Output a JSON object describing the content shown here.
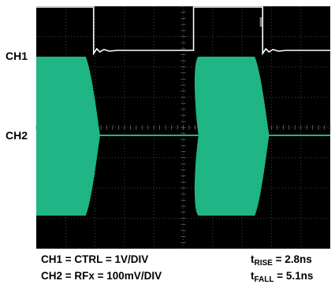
{
  "chart_data": {
    "type": "oscilloscope",
    "channels": [
      {
        "label": "CH1",
        "color": "#ffffff",
        "role": "CTRL",
        "high_segments": [
          [
            0,
            1.95
          ],
          [
            5.35,
            7.7
          ]
        ]
      },
      {
        "label": "CH2",
        "color": "#1fb584",
        "role": "RFx",
        "envelope_segments": [
          [
            0,
            1.95
          ],
          [
            5.35,
            7.7
          ]
        ]
      }
    ],
    "divisions": {
      "x": 10,
      "y": 8
    },
    "grid": true,
    "background": "#000000"
  },
  "captions": {
    "ch1": "CH1 = CTRL = 1V/DIV",
    "ch2": "CH2 = RFx = 100mV/DIV",
    "rise_t": "t",
    "rise_sub": "RISE",
    "rise_val": " = 2.8ns",
    "fall_t": "t",
    "fall_sub": "FALL",
    "fall_val": " = 5.1ns"
  }
}
